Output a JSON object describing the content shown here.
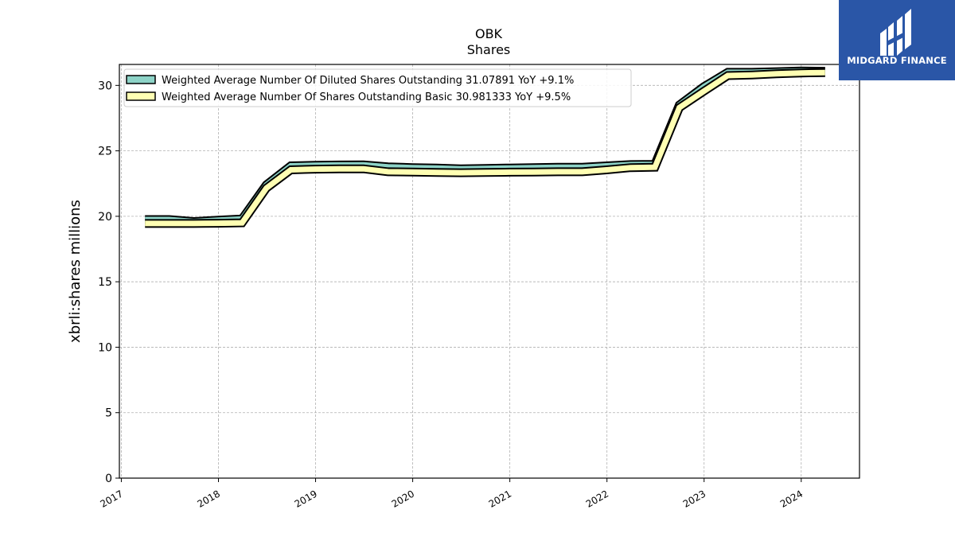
{
  "logo": {
    "text": "MIDGARD FINANCE"
  },
  "chart_data": {
    "type": "area",
    "title": "OBK",
    "subtitle": "Shares",
    "ylabel": "xbrli:shares millions",
    "xlabel": "",
    "xlim": [
      2016.98,
      2024.6
    ],
    "ylim": [
      0,
      31.6
    ],
    "x_ticks": [
      2017,
      2018,
      2019,
      2020,
      2021,
      2022,
      2023,
      2024
    ],
    "x_tick_labels": [
      "2017",
      "2018",
      "2019",
      "2020",
      "2021",
      "2022",
      "2023",
      "2024"
    ],
    "y_ticks": [
      0,
      5,
      10,
      15,
      20,
      25,
      30
    ],
    "y_tick_labels": [
      "0",
      "5",
      "10",
      "15",
      "20",
      "25",
      "30"
    ],
    "grid": true,
    "legend_position": "top-left",
    "series": [
      {
        "name": "Weighted Average Number Of Diluted Shares Outstanding",
        "legend_label": "Weighted Average Number Of Diluted Shares Outstanding  31.07891 YoY +9.1%",
        "color": "#8dd3c7",
        "x": [
          "2017-03-31",
          "2017-06-30",
          "2017-09-30",
          "2017-12-31",
          "2018-03-31",
          "2018-06-30",
          "2018-09-30",
          "2018-12-31",
          "2019-03-31",
          "2019-06-30",
          "2019-09-30",
          "2019-12-31",
          "2020-03-31",
          "2020-06-30",
          "2020-09-30",
          "2020-12-31",
          "2021-03-31",
          "2021-06-30",
          "2021-09-30",
          "2021-12-31",
          "2022-03-31",
          "2022-06-30",
          "2022-09-30",
          "2022-12-31",
          "2023-03-31",
          "2023-06-30",
          "2023-09-30",
          "2023-12-31",
          "2024-03-31"
        ],
        "y": [
          19.75,
          19.75,
          19.6,
          19.7,
          19.8,
          22.4,
          23.85,
          23.9,
          23.92,
          23.93,
          23.78,
          23.72,
          23.68,
          23.63,
          23.66,
          23.69,
          23.72,
          23.74,
          23.75,
          23.85,
          23.95,
          23.97,
          28.5,
          29.9,
          31.0,
          31.0,
          31.05,
          31.1,
          31.08
        ]
      },
      {
        "name": "Weighted Average Number Of Shares Outstanding Basic",
        "legend_label": "Weighted Average Number Of Shares Outstanding Basic  30.981333 YoY +9.5%",
        "color": "#ffffb3",
        "x": [
          "2017-03-31",
          "2017-06-30",
          "2017-09-30",
          "2017-12-31",
          "2018-03-31",
          "2018-06-30",
          "2018-09-30",
          "2018-12-31",
          "2019-03-31",
          "2019-06-30",
          "2019-09-30",
          "2019-12-31",
          "2020-03-31",
          "2020-06-30",
          "2020-09-30",
          "2020-12-31",
          "2021-03-31",
          "2021-06-30",
          "2021-09-30",
          "2021-12-31",
          "2022-03-31",
          "2022-06-30",
          "2022-09-30",
          "2022-12-31",
          "2023-03-31",
          "2023-06-30",
          "2023-09-30",
          "2023-12-31",
          "2024-03-31"
        ],
        "y": [
          19.45,
          19.45,
          19.45,
          19.47,
          19.5,
          22.15,
          23.55,
          23.6,
          23.62,
          23.63,
          23.4,
          23.38,
          23.35,
          23.33,
          23.35,
          23.37,
          23.38,
          23.4,
          23.4,
          23.55,
          23.72,
          23.75,
          28.3,
          29.55,
          30.75,
          30.8,
          30.88,
          30.95,
          30.98
        ]
      }
    ]
  }
}
